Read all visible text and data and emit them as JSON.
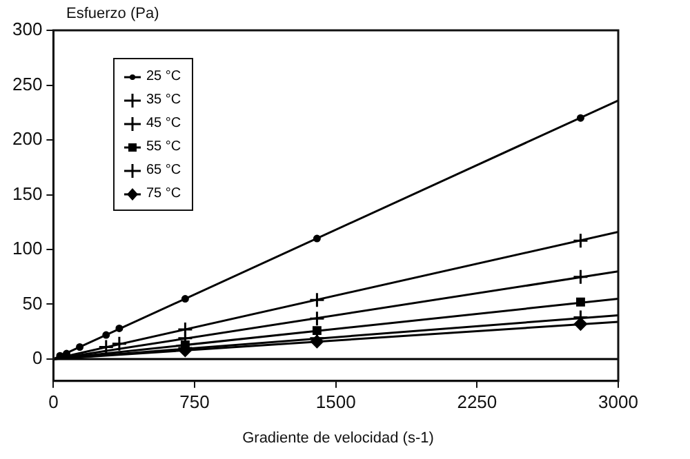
{
  "chart_data": {
    "type": "scatter",
    "ylabel": "Esfuerzo (Pa)",
    "xlabel": "Gradiente de velocidad (s-1)",
    "xlim": [
      0,
      3000
    ],
    "xticks": [
      0,
      750,
      1500,
      2250,
      3000
    ],
    "ylim": [
      -20,
      300
    ],
    "yticks": [
      0,
      50,
      100,
      150,
      200,
      250,
      300
    ],
    "grid": false,
    "legend": "top left",
    "ref_lines": [
      {
        "axis": "y",
        "value": 0,
        "color": "#000000"
      }
    ],
    "series": [
      {
        "name": "25 °C",
        "marker": "circle",
        "color": "#000000",
        "x": [
          35,
          70,
          140,
          280,
          350,
          700,
          1400,
          2800
        ],
        "values": [
          3,
          5,
          11,
          22,
          28,
          55,
          110,
          220
        ]
      },
      {
        "name": "35 °C",
        "marker": "cross",
        "color": "#000000",
        "x": [
          280,
          350,
          700,
          1400,
          2800
        ],
        "values": [
          11,
          14,
          27,
          54,
          108
        ]
      },
      {
        "name": "45 °C",
        "marker": "cross",
        "color": "#000000",
        "x": [
          700,
          1400,
          2800
        ],
        "values": [
          19,
          37,
          75
        ]
      },
      {
        "name": "55 °C",
        "marker": "square",
        "color": "#000000",
        "x": [
          700,
          1400,
          2800
        ],
        "values": [
          13,
          26,
          52
        ]
      },
      {
        "name": "65 °C",
        "marker": "cross",
        "color": "#000000",
        "x": [
          700,
          1400,
          2800
        ],
        "values": [
          10,
          19,
          38
        ]
      },
      {
        "name": "75 °C",
        "marker": "diamond",
        "color": "#000000",
        "x": [
          700,
          1400,
          2800
        ],
        "values": [
          8,
          16,
          32
        ]
      },
      {
        "type": "line",
        "marker": "none",
        "color": "#000000",
        "x": [
          0,
          3000
        ],
        "values": [
          0,
          236
        ]
      },
      {
        "type": "line",
        "marker": "none",
        "color": "#000000",
        "x": [
          0,
          3000
        ],
        "values": [
          0,
          116
        ]
      },
      {
        "type": "line",
        "marker": "none",
        "color": "#000000",
        "x": [
          0,
          3000
        ],
        "values": [
          0,
          80
        ]
      },
      {
        "type": "line",
        "marker": "none",
        "color": "#000000",
        "x": [
          0,
          3000
        ],
        "values": [
          0,
          55
        ]
      },
      {
        "type": "line",
        "marker": "none",
        "color": "#000000",
        "x": [
          0,
          3000
        ],
        "values": [
          0,
          40
        ]
      },
      {
        "type": "line",
        "marker": "none",
        "color": "#000000",
        "x": [
          0,
          3000
        ],
        "values": [
          0,
          34
        ]
      }
    ]
  }
}
